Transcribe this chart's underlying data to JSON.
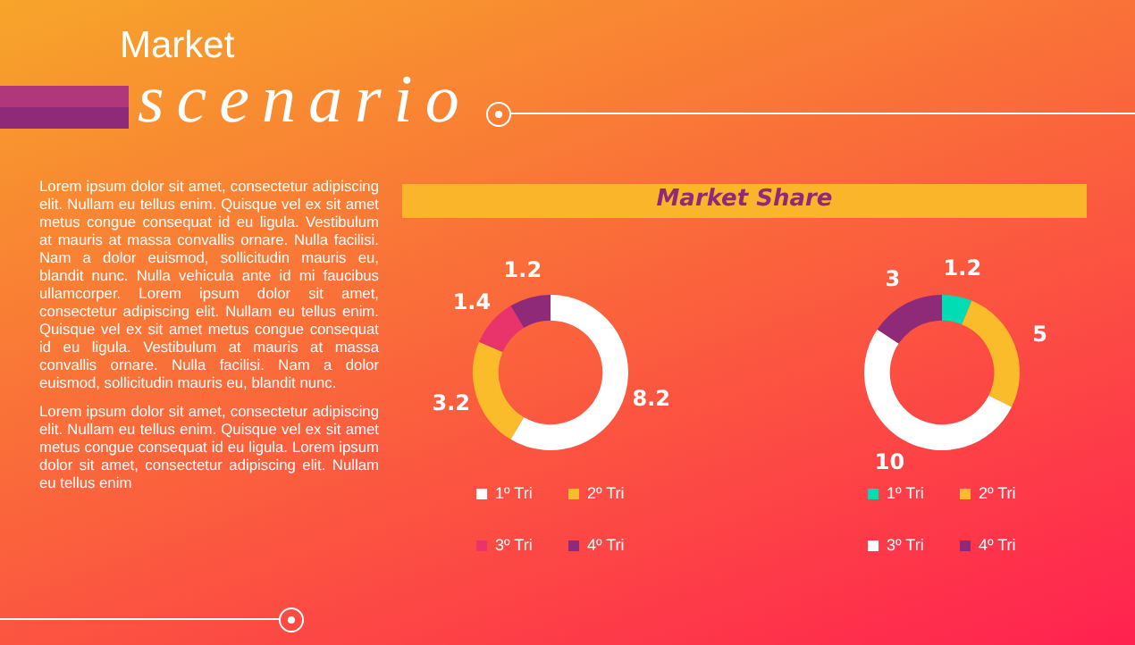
{
  "chart_data": [
    {
      "type": "other",
      "title": "Market",
      "subtitle": "scenario",
      "annotations": [
        "Lorem ipsum dolor sit amet, consectetur adipiscing elit. Nullam eu tellus enim. Quisque vel ex sit amet metus congue consequat id eu ligula. Vestibulum at mauris at massa convallis ornare. Nulla facilisi. Nam a dolor euismod, sollicitudin mauris eu, blandit nunc. Nulla vehicula ante id mi faucibus ullamcorper. Lorem ipsum dolor sit amet, consectetur adipiscing elit. Nullam eu tellus enim. Quisque vel ex sit amet metus congue consequat id eu ligula. Vestibulum at mauris at massa convallis ornare. Nulla facilisi. Nam a dolor euismod, sollicitudin mauris eu, blandit nunc.",
        "Lorem ipsum dolor sit amet, consectetur adipiscing elit. Nullam eu tellus enim. Quisque vel ex sit amet metus congue consequat id eu ligula. Lorem ipsum dolor sit amet, consectetur adipiscing elit. Nullam eu tellus enim"
      ]
    },
    {
      "type": "donut",
      "title": "Market Share",
      "categories": [
        "1º Tri",
        "2º Tri",
        "3º Tri",
        "4º Tri"
      ],
      "values": [
        8.2,
        3.2,
        1.4,
        1.2
      ],
      "colors": [
        "#ffffff",
        "#fbbc2c",
        "#e8336b",
        "#8e2a78"
      ],
      "data_labels": true,
      "legend": "bottom"
    },
    {
      "type": "donut",
      "categories": [
        "1º Tri",
        "2º Tri",
        "3º Tri",
        "4º Tri"
      ],
      "values": [
        1.2,
        5,
        10,
        3
      ],
      "colors": [
        "#00dcb4",
        "#fbbc2c",
        "#ffffff",
        "#8e2a78"
      ],
      "data_labels": true,
      "legend": "bottom"
    }
  ]
}
